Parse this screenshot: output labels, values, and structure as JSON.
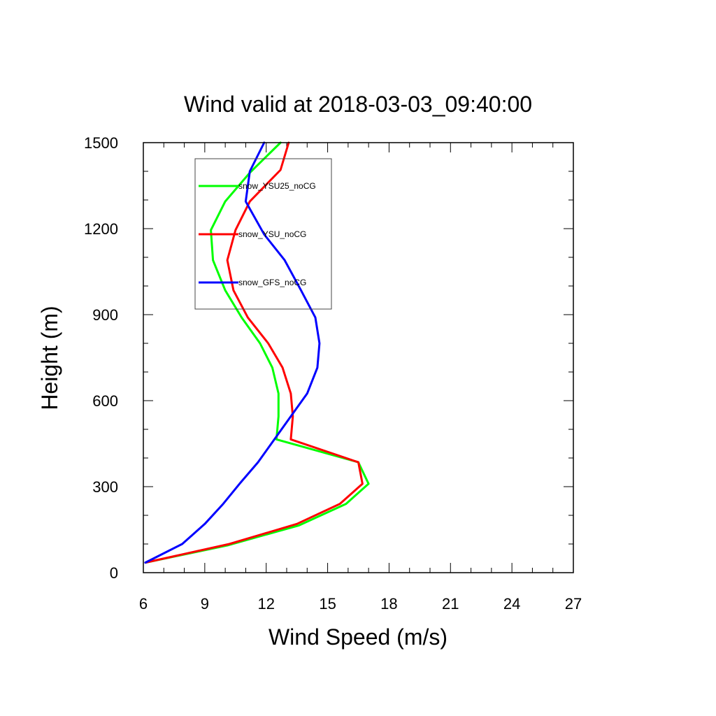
{
  "chart_data": {
    "type": "line",
    "title": "Wind valid at 2018-03-03_09:40:00",
    "xlabel": "Wind Speed (m/s)",
    "ylabel": "Height (m)",
    "xlim": [
      6,
      27
    ],
    "ylim": [
      0,
      1500
    ],
    "xticks": [
      "6",
      "9",
      "12",
      "15",
      "18",
      "21",
      "24",
      "27"
    ],
    "yticks": [
      "0",
      "300",
      "600",
      "900",
      "1200",
      "1500"
    ],
    "legend_position": "top-left inside plot",
    "series": [
      {
        "name": "snow_YSU25_noCG",
        "color": "#00ff00",
        "points": [
          [
            6.1,
            35
          ],
          [
            10.1,
            95
          ],
          [
            13.6,
            165
          ],
          [
            15.9,
            240
          ],
          [
            17.0,
            310
          ],
          [
            16.5,
            385
          ],
          [
            12.5,
            465
          ],
          [
            12.6,
            545
          ],
          [
            12.6,
            625
          ],
          [
            12.3,
            715
          ],
          [
            11.7,
            800
          ],
          [
            10.8,
            890
          ],
          [
            10.0,
            985
          ],
          [
            9.4,
            1090
          ],
          [
            9.3,
            1195
          ],
          [
            10.0,
            1295
          ],
          [
            11.2,
            1395
          ],
          [
            12.7,
            1500
          ]
        ]
      },
      {
        "name": "snow_YSU_noCG",
        "color": "#ff0000",
        "points": [
          [
            6.1,
            35
          ],
          [
            10.2,
            100
          ],
          [
            13.5,
            170
          ],
          [
            15.6,
            240
          ],
          [
            16.7,
            310
          ],
          [
            16.5,
            385
          ],
          [
            13.2,
            465
          ],
          [
            13.3,
            545
          ],
          [
            13.2,
            625
          ],
          [
            12.8,
            715
          ],
          [
            12.1,
            800
          ],
          [
            11.1,
            890
          ],
          [
            10.4,
            985
          ],
          [
            10.1,
            1090
          ],
          [
            10.5,
            1195
          ],
          [
            11.2,
            1295
          ],
          [
            12.7,
            1405
          ],
          [
            13.1,
            1500
          ]
        ]
      },
      {
        "name": "snow_GFS_noCG",
        "color": "#0000ff",
        "points": [
          [
            6.1,
            35
          ],
          [
            7.9,
            100
          ],
          [
            9.0,
            170
          ],
          [
            9.9,
            240
          ],
          [
            10.7,
            310
          ],
          [
            11.6,
            385
          ],
          [
            12.4,
            465
          ],
          [
            13.2,
            545
          ],
          [
            14.0,
            625
          ],
          [
            14.5,
            715
          ],
          [
            14.6,
            800
          ],
          [
            14.4,
            890
          ],
          [
            13.7,
            985
          ],
          [
            12.9,
            1090
          ],
          [
            11.9,
            1180
          ],
          [
            11.0,
            1295
          ],
          [
            11.2,
            1400
          ],
          [
            11.9,
            1500
          ]
        ]
      }
    ]
  }
}
